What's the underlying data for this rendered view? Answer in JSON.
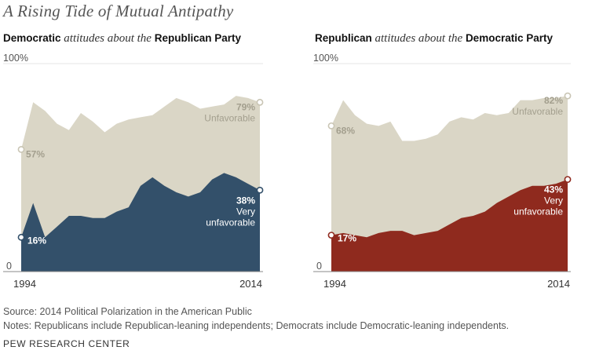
{
  "title": "A Rising Tide of Mutual Antipathy",
  "panels": [
    {
      "title_parts": [
        "Democratic",
        " attitudes about the ",
        "Republican Party"
      ]
    },
    {
      "title_parts": [
        "Republican",
        " attitudes about the ",
        "Democratic Party"
      ]
    }
  ],
  "source": "Source: 2014 Political Polarization in the American Public",
  "notes": "Notes: Republicans include Republican-leaning independents; Democrats include Democratic-leaning independents.",
  "org": "PEW RESEARCH CENTER",
  "colors": {
    "unfavorable": "#dad6c6",
    "dem_very": "#33506a",
    "rep_very": "#8f2a1e",
    "unfav_label": "#a39f8e",
    "axis_text": "#555555"
  },
  "chart_data": [
    {
      "type": "area",
      "x": [
        1994,
        1995,
        1996,
        1997,
        1998,
        1999,
        2000,
        2001,
        2002,
        2003,
        2004,
        2005,
        2006,
        2007,
        2008,
        2009,
        2010,
        2011,
        2012,
        2013,
        2014
      ],
      "ylim": [
        0,
        100
      ],
      "yticks": [
        "100%",
        "0"
      ],
      "xticks": [
        "1994",
        "2014"
      ],
      "series": [
        {
          "name": "Unfavorable",
          "values": [
            57,
            79,
            75,
            69,
            66,
            74,
            70,
            65,
            69,
            71,
            72,
            73,
            77,
            81,
            79,
            76,
            77,
            78,
            82,
            81,
            79
          ],
          "end_label": "79%",
          "start_label": "57%"
        },
        {
          "name": "Very unfavorable",
          "values": [
            16,
            32,
            16,
            21,
            26,
            26,
            25,
            25,
            28,
            30,
            40,
            44,
            40,
            37,
            35,
            37,
            43,
            46,
            44,
            41,
            38
          ],
          "end_label": "38%",
          "start_label": "16%",
          "label_lines": [
            "Very",
            "unfavorable"
          ]
        }
      ]
    },
    {
      "type": "area",
      "x": [
        1994,
        1995,
        1996,
        1997,
        1998,
        1999,
        2000,
        2001,
        2002,
        2003,
        2004,
        2005,
        2006,
        2007,
        2008,
        2009,
        2010,
        2011,
        2012,
        2013,
        2014
      ],
      "ylim": [
        0,
        100
      ],
      "yticks": [
        "100%",
        "0"
      ],
      "xticks": [
        "1994",
        "2014"
      ],
      "series": [
        {
          "name": "Unfavorable",
          "values": [
            68,
            80,
            73,
            69,
            68,
            70,
            61,
            61,
            62,
            64,
            70,
            72,
            71,
            74,
            73,
            74,
            80,
            80,
            81,
            81,
            82
          ],
          "end_label": "82%",
          "start_label": "68%"
        },
        {
          "name": "Very unfavorable",
          "values": [
            17,
            18,
            17,
            16,
            18,
            19,
            19,
            17,
            18,
            19,
            22,
            25,
            26,
            28,
            32,
            35,
            38,
            40,
            40,
            41,
            43
          ],
          "end_label": "43%",
          "start_label": "17%",
          "label_lines": [
            "Very",
            "unfavorable"
          ]
        }
      ]
    }
  ]
}
